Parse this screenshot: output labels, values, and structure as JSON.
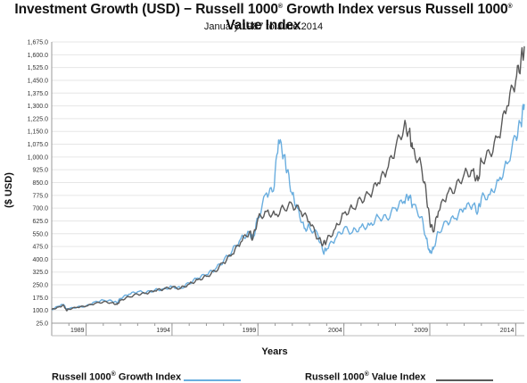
{
  "title_main": "Investment Growth (USD) − Russell 1000",
  "title_sup": "®",
  "title_mid": " Growth Index versus Russell 1000",
  "title_sup2": "®",
  "title_end": " Value Index",
  "subtitle": "January 1987 to June 2014",
  "chart_data": {
    "type": "line",
    "title": "Investment Growth (USD) − Russell 1000® Growth Index versus Russell 1000® Value Index",
    "subtitle": "January 1987 to June 2014",
    "xlabel": "Years",
    "ylabel": "($ USD)",
    "xlim": [
      1987.0,
      2014.5
    ],
    "ylim": [
      25,
      1675
    ],
    "x_ticks": [
      1989,
      1994,
      1999,
      2004,
      2009,
      2014
    ],
    "y_ticks": [
      25,
      100,
      175,
      250,
      325,
      400,
      475,
      550,
      625,
      700,
      775,
      850,
      925,
      1000,
      1075,
      1150,
      1225,
      1300,
      1375,
      1450,
      1525,
      1600,
      1675
    ],
    "y_tick_labels": [
      "25.0",
      "100.0",
      "175.0",
      "250.0",
      "325.0",
      "400.0",
      "475.0",
      "550.0",
      "625.0",
      "700.0",
      "775.0",
      "850.0",
      "925.0",
      "1,000.0",
      "1,075.0",
      "1,150.0",
      "1,225.0",
      "1,300.0",
      "1,375.0",
      "1,450.0",
      "1,525.0",
      "1,600.0",
      "1,675.0"
    ],
    "grid": true,
    "legend_placement": "bottom",
    "series": [
      {
        "name": "Russell 1000® Growth Index",
        "color": "#6aaedf",
        "x": [
          1987.0,
          1987.4,
          1987.7,
          1987.85,
          1988.0,
          1988.5,
          1989.0,
          1989.5,
          1990.0,
          1990.5,
          1990.8,
          1991.0,
          1991.5,
          1992.0,
          1992.5,
          1993.0,
          1993.5,
          1994.0,
          1994.5,
          1995.0,
          1995.5,
          1996.0,
          1996.5,
          1997.0,
          1997.5,
          1998.0,
          1998.5,
          1998.7,
          1999.0,
          1999.5,
          1999.9,
          2000.2,
          2000.5,
          2000.7,
          2001.0,
          2001.3,
          2001.7,
          2002.0,
          2002.5,
          2002.8,
          2003.0,
          2003.5,
          2004.0,
          2004.5,
          2005.0,
          2005.5,
          2006.0,
          2006.5,
          2007.0,
          2007.5,
          2007.8,
          2008.0,
          2008.5,
          2008.8,
          2009.0,
          2009.2,
          2009.5,
          2010.0,
          2010.5,
          2011.0,
          2011.5,
          2011.8,
          2012.0,
          2012.5,
          2013.0,
          2013.5,
          2014.0,
          2014.3,
          2014.5
        ],
        "y": [
          105,
          125,
          135,
          105,
          110,
          120,
          125,
          150,
          160,
          155,
          145,
          170,
          195,
          210,
          205,
          220,
          225,
          240,
          230,
          260,
          290,
          310,
          340,
          390,
          450,
          520,
          560,
          520,
          640,
          790,
          800,
          1100,
          1010,
          920,
          780,
          700,
          580,
          590,
          540,
          440,
          460,
          520,
          580,
          560,
          590,
          600,
          650,
          640,
          700,
          740,
          770,
          720,
          650,
          520,
          440,
          460,
          560,
          620,
          640,
          700,
          720,
          680,
          760,
          780,
          860,
          960,
          1120,
          1200,
          1310
        ]
      },
      {
        "name": "Russell 1000® Value Index",
        "color": "#5a5a5a",
        "x": [
          1987.0,
          1987.4,
          1987.7,
          1987.85,
          1988.0,
          1988.5,
          1989.0,
          1989.5,
          1990.0,
          1990.5,
          1990.8,
          1991.0,
          1991.5,
          1992.0,
          1992.5,
          1993.0,
          1993.5,
          1994.0,
          1994.5,
          1995.0,
          1995.5,
          1996.0,
          1996.5,
          1997.0,
          1997.5,
          1998.0,
          1998.5,
          1998.7,
          1999.0,
          1999.5,
          2000.0,
          2000.5,
          2001.0,
          2001.5,
          2002.0,
          2002.5,
          2002.8,
          2003.0,
          2003.5,
          2004.0,
          2004.5,
          2005.0,
          2005.5,
          2006.0,
          2006.5,
          2007.0,
          2007.5,
          2007.8,
          2008.0,
          2008.5,
          2008.8,
          2009.0,
          2009.2,
          2009.5,
          2010.0,
          2010.5,
          2011.0,
          2011.5,
          2011.8,
          2012.0,
          2012.5,
          2013.0,
          2013.5,
          2014.0,
          2014.3,
          2014.5
        ],
        "y": [
          105,
          120,
          130,
          100,
          108,
          118,
          125,
          140,
          150,
          145,
          135,
          160,
          180,
          195,
          200,
          215,
          225,
          235,
          230,
          255,
          280,
          300,
          330,
          380,
          430,
          500,
          560,
          520,
          640,
          680,
          660,
          700,
          720,
          680,
          620,
          520,
          490,
          510,
          580,
          670,
          700,
          750,
          780,
          850,
          920,
          1050,
          1180,
          1150,
          1050,
          950,
          780,
          620,
          560,
          680,
          780,
          820,
          900,
          920,
          860,
          980,
          1020,
          1120,
          1300,
          1450,
          1560,
          1650
        ]
      }
    ]
  },
  "legend": {
    "growth_label_a": "Russell 1000",
    "growth_label_sup": "®",
    "growth_label_b": " Growth Index",
    "value_label_a": "Russell 1000",
    "value_label_sup": "®",
    "value_label_b": " Value Index"
  }
}
